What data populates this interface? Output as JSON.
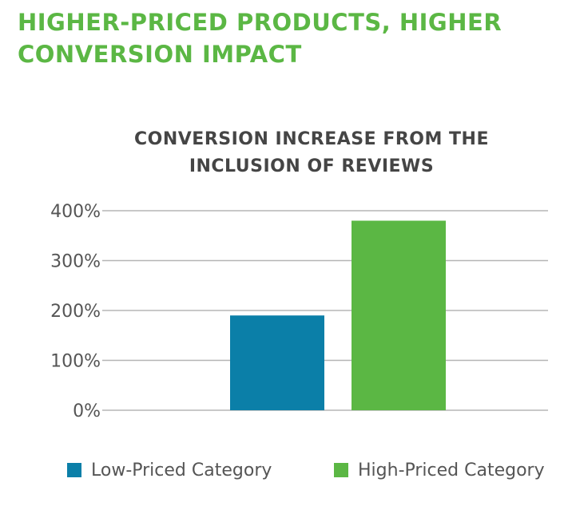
{
  "page": {
    "title_lines": [
      "HIGHER-PRICED PRODUCTS, HIGHER",
      "CONVERSION IMPACT"
    ]
  },
  "colors": {
    "title": "#5bb744",
    "low_priced": "#0b7fa8",
    "high_priced": "#5bb744",
    "grid": "#b5b5b5",
    "axis_text": "#555555",
    "chart_title": "#454545"
  },
  "chart_data": {
    "type": "bar",
    "title_lines": [
      "CONVERSION INCREASE FROM THE",
      "INCLUSION OF REVIEWS"
    ],
    "xlabel": "",
    "ylabel": "",
    "ylim": [
      0,
      400
    ],
    "yticks": [
      0,
      100,
      200,
      300,
      400
    ],
    "ytick_labels": [
      "0%",
      "100%",
      "200%",
      "300%",
      "400%"
    ],
    "grid": true,
    "legend_position": "bottom",
    "series": [
      {
        "name": "Low-Priced Category",
        "values": [
          190
        ],
        "color": "#0b7fa8"
      },
      {
        "name": "High-Priced Category",
        "values": [
          380
        ],
        "color": "#5bb744"
      }
    ]
  }
}
